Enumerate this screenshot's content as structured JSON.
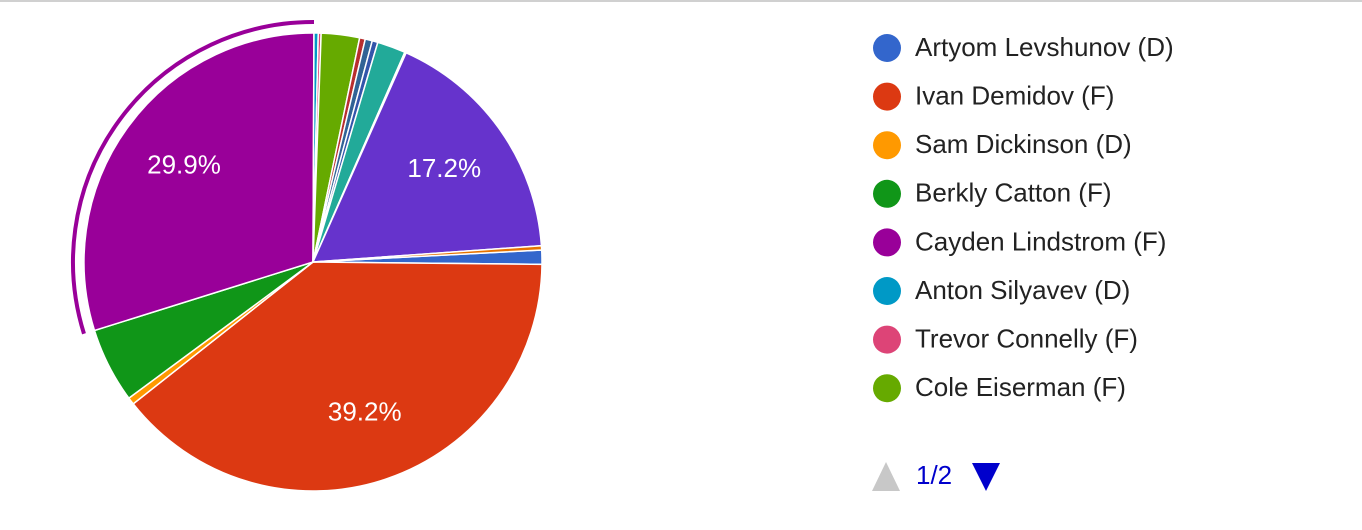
{
  "chart_data": {
    "type": "pie",
    "categories": [
      "Artyom Levshunov (D)",
      "Ivan Demidov (F)",
      "Sam Dickinson (D)",
      "Berkly Catton (F)",
      "Cayden Lindstrom (F)",
      "Anton Silyavev (D)",
      "Trevor Connelly (F)",
      "Cole Eiserman (F)",
      null,
      null,
      null,
      null,
      null,
      null,
      null
    ],
    "values": [
      1.0,
      39.2,
      0.5,
      5.3,
      29.9,
      0.3,
      0.2,
      2.7,
      0.4,
      0.5,
      0.4,
      2.0,
      0.1,
      17.2,
      0.3
    ],
    "value_labels": [
      null,
      "39.2%",
      null,
      null,
      "29.9%",
      null,
      null,
      null,
      null,
      null,
      null,
      null,
      null,
      "17.2%",
      null
    ],
    "colors": [
      "#3366cc",
      "#dc3912",
      "#ff9900",
      "#109618",
      "#990099",
      "#0099c6",
      "#dd4477",
      "#66aa00",
      "#b82e2e",
      "#316395",
      "#3355aa",
      "#22aa99",
      "#aaaa11",
      "#6633cc",
      "#e67300"
    ],
    "start_angle": 87,
    "highlight": 4,
    "pagination": "1/2"
  }
}
